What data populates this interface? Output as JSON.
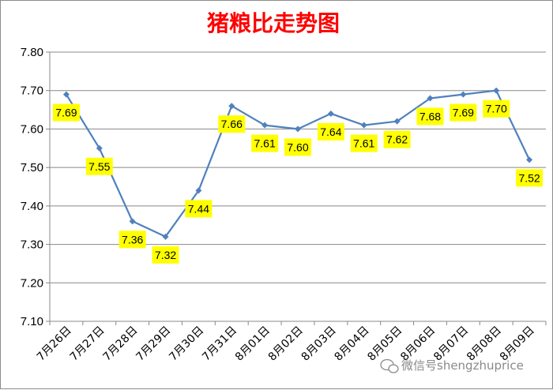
{
  "chart_data": {
    "type": "line",
    "title": "猪粮比走势图",
    "categories": [
      "7月26日",
      "7月27日",
      "7月28日",
      "7月29日",
      "7月30日",
      "7月31日",
      "8月01日",
      "8月02日",
      "8月03日",
      "8月04日",
      "8月05日",
      "8月06日",
      "8月07日",
      "8月08日",
      "8月09日"
    ],
    "values": [
      7.69,
      7.55,
      7.36,
      7.32,
      7.44,
      7.66,
      7.61,
      7.6,
      7.64,
      7.61,
      7.62,
      7.68,
      7.69,
      7.7,
      7.52
    ],
    "data_labels": [
      "7.69",
      "7.55",
      "7.36",
      "7.32",
      "7.44",
      "7.66",
      "7.61",
      "7.60",
      "7.64",
      "7.61",
      "7.62",
      "7.68",
      "7.69",
      "7.70",
      "7.52"
    ],
    "yticks": [
      "7.10",
      "7.20",
      "7.30",
      "7.40",
      "7.50",
      "7.60",
      "7.70",
      "7.80"
    ],
    "ylim": [
      7.1,
      7.8
    ],
    "grid": true,
    "legend": "none",
    "line_color": "#4f81bd",
    "label_background": "#ffff00",
    "title_color": "#ff0000"
  },
  "watermark": {
    "text": "微信号shengzhuprice",
    "icon": "wechat-icon"
  }
}
